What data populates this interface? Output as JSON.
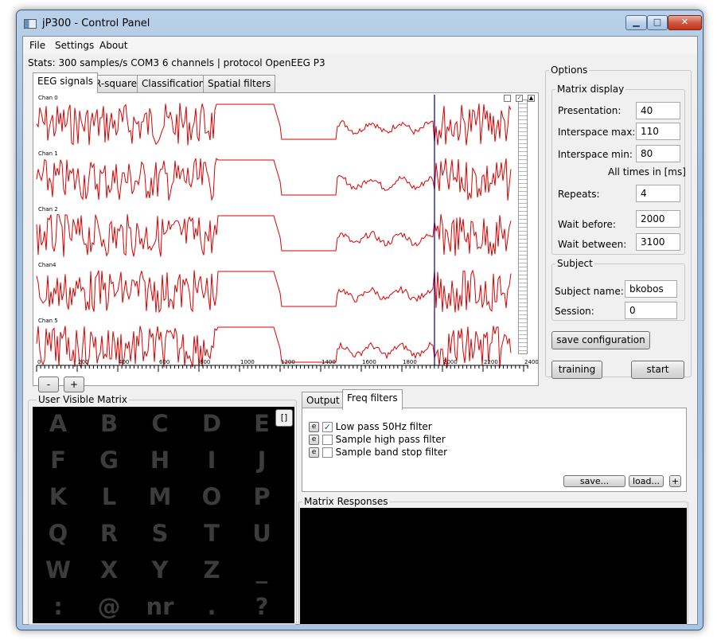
{
  "window": {
    "title": "jP300 - Control Panel",
    "min_glyph": "▁",
    "max_glyph": "□",
    "close_glyph": "✕"
  },
  "menu": [
    "File",
    "Settings",
    "About"
  ],
  "stats": "Stats: 300 samples/s COM3 6 channels | protocol OpenEEG P3",
  "tabs": [
    "EEG signals",
    "R-square",
    "Classification",
    "Spatial filters"
  ],
  "eeg": {
    "channels": [
      "Chan 0",
      "Chan 1",
      "Chan 2",
      "Chan4",
      "Chan 5"
    ],
    "x_ticks": [
      "0",
      "200",
      "400",
      "600",
      "800",
      "1000",
      "1200",
      "1400",
      "1600",
      "1800",
      "2000",
      "2200",
      "2400"
    ],
    "zoom_out_label": "-",
    "zoom_in_label": "+",
    "signal_color": "#dd0000",
    "cursor_color": "#000080"
  },
  "options": {
    "title": "Options",
    "matrix_display": {
      "title": "Matrix display",
      "presentation_label": "Presentation:",
      "presentation": "40",
      "interspace_max_label": "Interspace max:",
      "interspace_max": "110",
      "interspace_min_label": "Interspace min:",
      "interspace_min": "80",
      "times_note": "All times in [ms]",
      "repeats_label": "Repeats:",
      "repeats": "4",
      "wait_before_label": "Wait before:",
      "wait_before": "2000",
      "wait_between_label": "Wait between:",
      "wait_between": "3100"
    },
    "subject": {
      "title": "Subject",
      "name_label": "Subject name:",
      "name": "bkobos",
      "session_label": "Session:",
      "session": "0"
    },
    "save_config": "save configuration",
    "training": "training",
    "start": "start"
  },
  "matrix": {
    "title": "User Visible Matrix",
    "corner_button": "[]",
    "rows": [
      [
        "A",
        "B",
        "C",
        "D",
        "E"
      ],
      [
        "F",
        "G",
        "H",
        "I",
        "J"
      ],
      [
        "K",
        "L",
        "M",
        "O",
        "P"
      ],
      [
        "Q",
        "R",
        "S",
        "T",
        "U"
      ],
      [
        "W",
        "X",
        "Y",
        "Z",
        "_"
      ],
      [
        ":",
        "@",
        "nr",
        ".",
        "?"
      ]
    ]
  },
  "bottom_tabs": [
    "Output",
    "Freq filters"
  ],
  "filters": [
    {
      "e": "e",
      "label": "Low pass 50Hz filter",
      "checked": true
    },
    {
      "e": "e",
      "label": "Sample high pass filter",
      "checked": false
    },
    {
      "e": "e",
      "label": "Sample band stop filter",
      "checked": false
    }
  ],
  "filter_buttons": {
    "save": "save...",
    "load": "load...",
    "add": "+"
  },
  "responses_title": "Matrix Responses"
}
